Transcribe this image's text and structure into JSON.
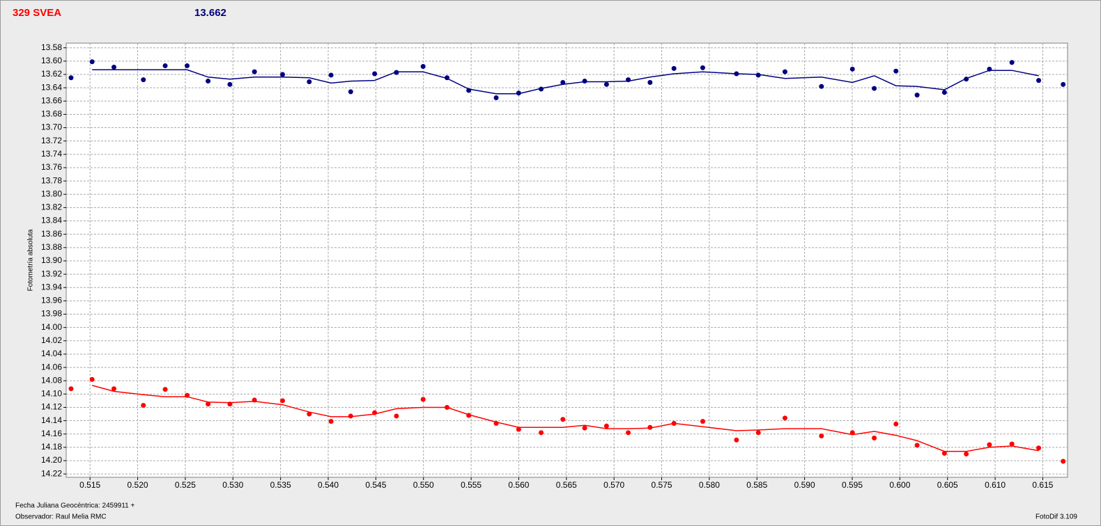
{
  "chart_data": {
    "type": "scatter",
    "title": "329 SVEA",
    "title_color": "#ff0000",
    "subtitle": "13.662",
    "subtitle_color": "#000080",
    "ylabel": "Fotometría absoluta",
    "footer": [
      "Fecha Juliana Geocéntrica: 2459911 +",
      "Observador: Raul Melia RMC"
    ],
    "credit": "FotoDif 3.109",
    "grid": true,
    "y_inverted": true,
    "xlim": [
      0.5125,
      0.6176
    ],
    "ylim": [
      13.573,
      14.225
    ],
    "xticks": [
      0.515,
      {
        "value": 0.52,
        "label": "0.520"
      },
      0.525,
      {
        "value": 0.53,
        "label": "0.530"
      },
      0.535,
      {
        "value": 0.54,
        "label": "0.540"
      },
      0.545,
      {
        "value": 0.55,
        "label": "0.550"
      },
      0.555,
      {
        "value": 0.56,
        "label": "0.560"
      },
      0.565,
      {
        "value": 0.57,
        "label": "0.570"
      },
      0.575,
      {
        "value": 0.58,
        "label": "0.580"
      },
      0.585,
      {
        "value": 0.59,
        "label": "0.590"
      },
      0.595,
      {
        "value": 0.6,
        "label": "0.600"
      },
      0.605,
      {
        "value": 0.61,
        "label": "0.610"
      },
      0.615
    ],
    "yticks": [
      13.58,
      {
        "value": 13.6,
        "label": "13.60"
      },
      13.62,
      13.64,
      13.66,
      13.68,
      {
        "value": 13.7,
        "label": "13.70"
      },
      13.72,
      13.74,
      13.76,
      13.78,
      {
        "value": 13.8,
        "label": "13.80"
      },
      13.82,
      13.84,
      13.86,
      13.88,
      {
        "value": 13.9,
        "label": "13.90"
      },
      13.92,
      13.94,
      13.96,
      13.98,
      {
        "value": 14,
        "label": "14.00"
      },
      14.02,
      14.04,
      14.06,
      14.08,
      {
        "value": 14.1,
        "label": "14.10"
      },
      14.12,
      14.14,
      14.16,
      14.18,
      {
        "value": 14.2,
        "label": "14.20"
      },
      14.22
    ],
    "x": [
      0.51301,
      0.51522,
      0.51751,
      0.5206,
      0.52289,
      0.52519,
      0.52739,
      0.52968,
      0.53226,
      0.53521,
      0.53801,
      0.5403,
      0.54236,
      0.54487,
      0.54716,
      0.54996,
      0.55247,
      0.55475,
      0.55763,
      0.55999,
      0.56235,
      0.56463,
      0.56692,
      0.56921,
      0.57149,
      0.57378,
      0.57629,
      0.57931,
      0.58285,
      0.58514,
      0.58794,
      0.59177,
      0.59502,
      0.59731,
      0.59959,
      0.60181,
      0.60468,
      0.60697,
      0.6094,
      0.61176,
      0.61457,
      0.61714
    ],
    "series": [
      {
        "style": "points",
        "color": "#000080",
        "values": [
          13.625,
          13.601,
          13.609,
          13.628,
          13.607,
          13.607,
          13.63,
          13.635,
          13.616,
          13.62,
          13.631,
          13.621,
          13.646,
          13.619,
          13.617,
          13.608,
          13.625,
          13.644,
          13.655,
          13.648,
          13.642,
          13.632,
          13.63,
          13.635,
          13.628,
          13.632,
          13.611,
          13.61,
          13.619,
          13.621,
          13.616,
          13.638,
          13.612,
          13.641,
          13.615,
          13.651,
          13.647,
          13.627,
          13.612,
          13.602,
          13.629,
          13.635
        ]
      },
      {
        "style": "line",
        "color": "#000080",
        "values": [
          null,
          13.613,
          13.613,
          13.613,
          13.613,
          13.613,
          13.624,
          13.627,
          13.624,
          13.624,
          13.625,
          13.633,
          13.63,
          13.629,
          13.616,
          13.616,
          13.626,
          13.642,
          13.649,
          13.649,
          13.641,
          13.635,
          13.631,
          13.631,
          13.63,
          13.624,
          13.619,
          13.616,
          13.619,
          13.62,
          13.626,
          13.624,
          13.632,
          13.622,
          13.637,
          13.638,
          13.643,
          13.626,
          13.614,
          13.614,
          13.622,
          null
        ]
      },
      {
        "style": "points",
        "color": "#ff0000",
        "values": [
          14.092,
          14.078,
          14.092,
          14.117,
          14.093,
          14.102,
          14.115,
          14.115,
          14.109,
          14.11,
          14.13,
          14.141,
          14.133,
          14.128,
          14.133,
          14.108,
          14.12,
          14.132,
          14.144,
          14.153,
          14.158,
          14.138,
          14.151,
          14.148,
          14.158,
          14.15,
          14.144,
          14.141,
          14.169,
          14.158,
          14.136,
          14.163,
          14.158,
          14.166,
          14.145,
          14.177,
          14.189,
          14.19,
          14.176,
          14.175,
          14.181,
          14.201
        ]
      },
      {
        "style": "line",
        "color": "#ff0000",
        "values": [
          null,
          14.087,
          14.096,
          14.101,
          14.104,
          14.104,
          14.112,
          14.113,
          14.111,
          14.116,
          14.127,
          14.134,
          14.134,
          14.13,
          14.122,
          14.12,
          14.12,
          14.131,
          14.142,
          14.15,
          14.15,
          14.15,
          14.147,
          14.152,
          14.152,
          14.151,
          14.144,
          14.149,
          14.155,
          14.154,
          14.152,
          14.152,
          14.161,
          14.156,
          14.162,
          14.17,
          14.186,
          14.186,
          14.18,
          14.178,
          14.185,
          null
        ]
      }
    ]
  }
}
